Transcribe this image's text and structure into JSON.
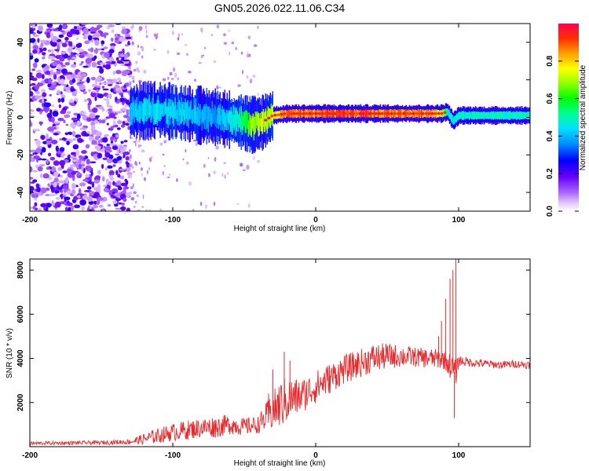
{
  "chart_data": [
    {
      "type": "heatmap",
      "title": "GN05.2026.022.11.06.C34",
      "xlabel": "Height of straight line (km)",
      "ylabel": "Frequency (Hz)",
      "xlim": [
        -200,
        150
      ],
      "ylim": [
        -50,
        50
      ],
      "xticks": [
        -200,
        -100,
        0,
        100
      ],
      "yticks": [
        -40,
        -20,
        0,
        20,
        40
      ],
      "colorbar": {
        "label": "Normalized spectral amplitude",
        "range": [
          0.0,
          1.0
        ],
        "ticks": [
          "0.0",
          "0.2",
          "0.4",
          "0.6",
          "0.8"
        ],
        "colormap": "rainbow (violet to red)"
      },
      "noise_region_x": [
        -200,
        -130
      ],
      "ridge": {
        "x": [
          -130,
          -110,
          -90,
          -70,
          -55,
          -45,
          -38,
          -30,
          -20,
          0,
          20,
          40,
          60,
          80,
          88,
          92,
          96,
          100,
          120,
          150
        ],
        "freq_hz": [
          3,
          4,
          2,
          0,
          -2,
          -4,
          -3,
          1,
          2,
          2,
          2,
          2,
          2,
          2,
          2,
          3,
          -2,
          1,
          1,
          1
        ],
        "amplitude": [
          0.45,
          0.45,
          0.45,
          0.4,
          0.5,
          0.7,
          0.75,
          0.75,
          0.9,
          0.9,
          0.95,
          0.9,
          0.9,
          0.9,
          0.8,
          0.5,
          0.5,
          0.5,
          0.5,
          0.5
        ]
      }
    },
    {
      "type": "line",
      "xlabel": "Height of straight line (km)",
      "ylabel": "SNR (10 * v/v)",
      "xlim": [
        -200,
        150
      ],
      "ylim": [
        0,
        8500
      ],
      "xticks": [
        -200,
        -100,
        0,
        100
      ],
      "yticks": [
        2000,
        4000,
        6000,
        8000
      ],
      "series": [
        {
          "name": "SNR",
          "color": "#e8292c",
          "envelope_x": [
            -200,
            -150,
            -130,
            -120,
            -110,
            -100,
            -90,
            -80,
            -70,
            -60,
            -50,
            -40,
            -30,
            -25,
            -20,
            -15,
            -10,
            0,
            10,
            20,
            30,
            40,
            50,
            60,
            70,
            80,
            90,
            95,
            98,
            100,
            110,
            120,
            130,
            140,
            150
          ],
          "envelope_mean": [
            150,
            180,
            220,
            350,
            500,
            650,
            750,
            850,
            900,
            1000,
            900,
            1000,
            1600,
            1900,
            2100,
            2200,
            2300,
            2700,
            3100,
            3500,
            3750,
            4000,
            4100,
            4100,
            4050,
            4000,
            3950,
            3600,
            3300,
            3900,
            3800,
            3750,
            3700,
            3750,
            3700
          ],
          "envelope_spread": [
            80,
            90,
            120,
            250,
            350,
            400,
            450,
            450,
            500,
            450,
            400,
            400,
            900,
            1100,
            1100,
            900,
            800,
            750,
            700,
            650,
            650,
            650,
            600,
            500,
            450,
            450,
            450,
            600,
            600,
            250,
            200,
            180,
            180,
            180,
            180
          ],
          "spikes": [
            {
              "x": -33,
              "y": 2400
            },
            {
              "x": -30,
              "y": 3500
            },
            {
              "x": -22,
              "y": 4300
            },
            {
              "x": -18,
              "y": 3900
            },
            {
              "x": 86,
              "y": 5000
            },
            {
              "x": 88,
              "y": 5700
            },
            {
              "x": 91,
              "y": 6700
            },
            {
              "x": 94,
              "y": 7600
            },
            {
              "x": 96,
              "y": 8000
            },
            {
              "x": 97,
              "y": 1300
            },
            {
              "x": 98,
              "y": 8500
            }
          ]
        }
      ]
    }
  ]
}
